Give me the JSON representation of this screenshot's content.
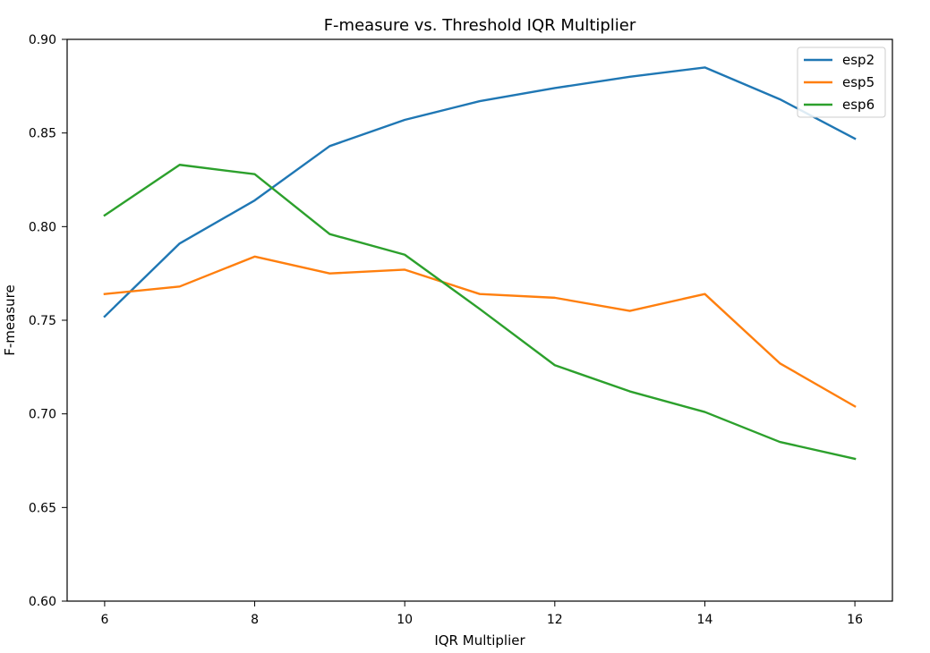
{
  "chart_data": {
    "type": "line",
    "title": "F-measure vs. Threshold IQR Multiplier",
    "xlabel": "IQR Multiplier",
    "ylabel": "F-measure",
    "x": [
      6,
      7,
      8,
      9,
      10,
      11,
      12,
      13,
      14,
      15,
      16
    ],
    "xlim": [
      5.5,
      16.5
    ],
    "ylim": [
      0.6,
      0.9
    ],
    "xticks": [
      6,
      8,
      10,
      12,
      14,
      16
    ],
    "yticks": [
      0.6,
      0.65,
      0.7,
      0.75,
      0.8,
      0.85,
      0.9
    ],
    "grid": false,
    "legend_position": "top-right",
    "series": [
      {
        "name": "esp2",
        "color": "#1f77b4",
        "values": [
          0.752,
          0.791,
          0.814,
          0.843,
          0.857,
          0.867,
          0.874,
          0.88,
          0.885,
          0.868,
          0.847
        ]
      },
      {
        "name": "esp5",
        "color": "#ff7f0e",
        "values": [
          0.764,
          0.768,
          0.784,
          0.775,
          0.777,
          0.764,
          0.762,
          0.755,
          0.764,
          0.727,
          0.704
        ]
      },
      {
        "name": "esp6",
        "color": "#2ca02c",
        "values": [
          0.806,
          0.833,
          0.828,
          0.796,
          0.785,
          0.756,
          0.726,
          0.712,
          0.701,
          0.685,
          0.676
        ]
      }
    ]
  }
}
